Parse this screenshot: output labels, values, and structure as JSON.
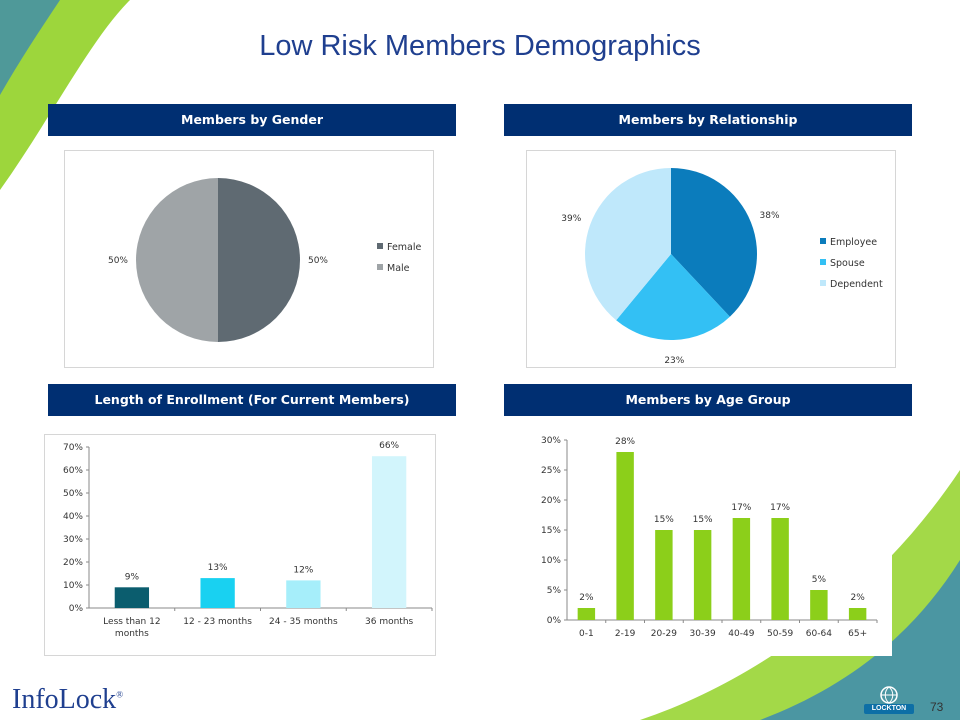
{
  "page": {
    "title": "Low Risk Members Demographics",
    "page_number": "73",
    "brand": "InfoLock",
    "brand_mark": "®",
    "logo_text": "LOCKTON",
    "colors": {
      "header": "#002f72",
      "title": "#1f3f8f",
      "accent_green": "#8ccf1a",
      "swoosh_blue": "#2e7fc0"
    }
  },
  "panels": {
    "gender": "Members by Gender",
    "relationship": "Members by Relationship",
    "enrollment": "Length of Enrollment (For Current Members)",
    "age": "Members by Age Group"
  },
  "chart_data": [
    {
      "id": "gender",
      "type": "pie",
      "categories": [
        "Female",
        "Male"
      ],
      "values": [
        50,
        50
      ],
      "labels": [
        "50%",
        "50%"
      ],
      "colors": [
        "#5f6a72",
        "#9fa4a7"
      ],
      "legend": "right"
    },
    {
      "id": "relationship",
      "type": "pie",
      "categories": [
        "Employee",
        "Spouse",
        "Dependent"
      ],
      "values": [
        38,
        23,
        39
      ],
      "labels": [
        "38%",
        "23%",
        "39%"
      ],
      "colors": [
        "#0b7cbc",
        "#33c0f4",
        "#bfe8fb"
      ],
      "legend": "right"
    },
    {
      "id": "enrollment",
      "type": "bar",
      "categories": [
        "Less than 12 months",
        "12 - 23 months",
        "24 - 35 months",
        "36 months"
      ],
      "values": [
        9,
        13,
        12,
        66
      ],
      "labels": [
        "9%",
        "13%",
        "12%",
        "66%"
      ],
      "colors": [
        "#0b5d6e",
        "#19d1f1",
        "#a6eefa",
        "#d2f5fc"
      ],
      "ylim": [
        0,
        70
      ],
      "yticks": [
        "0%",
        "10%",
        "20%",
        "30%",
        "40%",
        "50%",
        "60%",
        "70%"
      ],
      "grid": false
    },
    {
      "id": "age",
      "type": "bar",
      "categories": [
        "0-1",
        "2-19",
        "20-29",
        "30-39",
        "40-49",
        "50-59",
        "60-64",
        "65+"
      ],
      "values": [
        2,
        28,
        15,
        15,
        17,
        17,
        5,
        2
      ],
      "labels": [
        "2%",
        "28%",
        "15%",
        "15%",
        "17%",
        "17%",
        "5%",
        "2%"
      ],
      "color": "#8ccf1a",
      "ylim": [
        0,
        30
      ],
      "yticks": [
        "0%",
        "5%",
        "10%",
        "15%",
        "20%",
        "25%",
        "30%"
      ],
      "grid": false
    }
  ]
}
